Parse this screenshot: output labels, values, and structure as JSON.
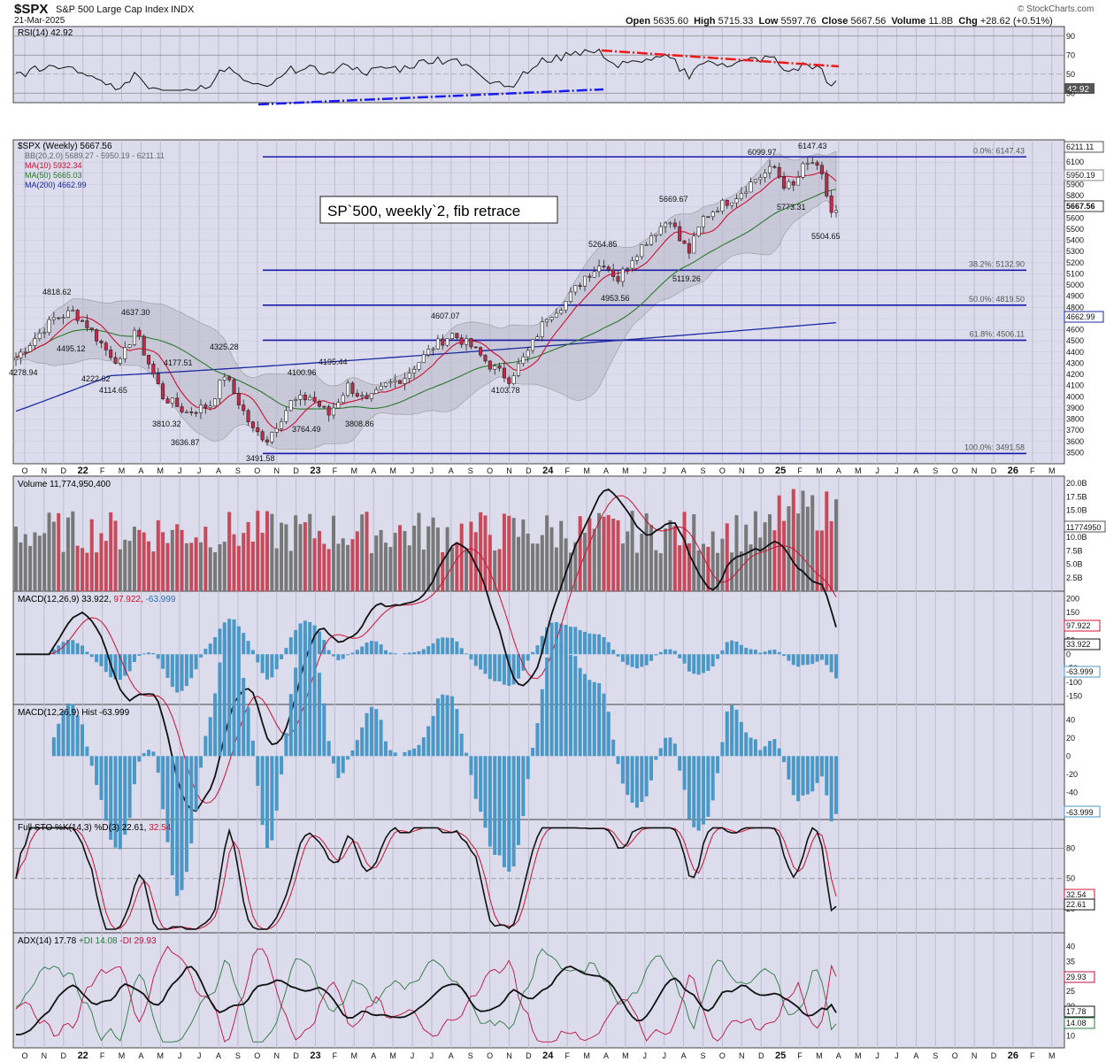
{
  "header": {
    "symbol": "$SPX",
    "name": "S&P 500 Large Cap Index",
    "exchange": "INDX",
    "date": "21-Mar-2025",
    "copyright": "© StockCharts.com",
    "ohlc": {
      "open_label": "Open",
      "open": "5635.60",
      "high_label": "High",
      "high": "5715.33",
      "low_label": "Low",
      "low": "5597.76",
      "close_label": "Close",
      "close": "5667.56",
      "volume_label": "Volume",
      "volume": "11.8B",
      "chg_label": "Chg",
      "chg": "+28.62 (+0.51%)"
    }
  },
  "colors": {
    "panel_bg": "#dcdcec",
    "up": "#ffffff",
    "down": "#c8284a",
    "vol_up": "#787878",
    "vol_down": "#c84a5a",
    "ma10": "#d01030",
    "ma50": "#2a7a2a",
    "ma200": "#1a2aa0",
    "fib": "#1a1aaa",
    "macd_hist": "#4a98c8",
    "plus_di": "#2a7a40",
    "minus_di": "#c01040"
  },
  "panels": {
    "rsi": {
      "legend": "RSI(14) 42.92",
      "value_label": "42.92",
      "ticks": [
        "90",
        "70",
        "50",
        "30"
      ]
    },
    "price": {
      "legend_title": "$SPX (Weekly) 5667.56",
      "legend_bb": "BB(20,2.0) 5689.27 - 5950.19 - 6211.11",
      "legend_ma10": "MA(10) 5932.34",
      "legend_ma50": "MA(50) 5665.03",
      "legend_ma200": "MA(200) 4662.99",
      "annotation": "SP`500, weekly`2, fib retrace",
      "fib_labels": [
        "0.0%: 6147.43",
        "38.2%: 5132.90",
        "50.0%: 4819.50",
        "61.8%: 4506.11",
        "100.0%: 3491.58"
      ],
      "peak_labels": [
        "4818.62",
        "4495.12",
        "4278.94",
        "4222.62",
        "4114.65",
        "4637.30",
        "4177.51",
        "3810.32",
        "3636.87",
        "4325.28",
        "3491.58",
        "4100.96",
        "4195.44",
        "3764.49",
        "3808.86",
        "4607.07",
        "4103.78",
        "5264.85",
        "4953.56",
        "5669.67",
        "5119.26",
        "6099.97",
        "6147.43",
        "5773.31",
        "5504.65"
      ],
      "axis_labels": [
        "6211.11",
        "5950.19",
        "5667.56",
        "4662.99"
      ],
      "ticks": [
        "6100",
        "6000",
        "5900",
        "5800",
        "5700",
        "5600",
        "5500",
        "5400",
        "5300",
        "5200",
        "5100",
        "5000",
        "4900",
        "4800",
        "4700",
        "4600",
        "4500",
        "4400",
        "4300",
        "4200",
        "4100",
        "4000",
        "3900",
        "3800",
        "3700",
        "3600",
        "3500"
      ]
    },
    "volume": {
      "legend": "Volume 11,774,950,400",
      "value_label": "11774950",
      "ticks": [
        "20.0B",
        "17.5B",
        "15.0B",
        "12.5B",
        "10.0B",
        "7.5B",
        "5.0B",
        "2.5B"
      ]
    },
    "macd": {
      "legend_a": "MACD(12,26,9) 33.922,",
      "legend_b": "97.922,",
      "legend_c": "-63.999",
      "labels": [
        "97.922",
        "33.922",
        "-63.999"
      ],
      "ticks": [
        "200",
        "150",
        "100",
        "50",
        "0",
        "-50",
        "-100",
        "-150"
      ]
    },
    "hist": {
      "legend": "MACD(12,26,9) Hist -63.999",
      "value_label": "-63.999",
      "ticks": [
        "40",
        "20",
        "0",
        "-20",
        "-40",
        "-60"
      ]
    },
    "sto": {
      "legend_a": "Full STO %K(14,3) %D(3) 22.61,",
      "legend_b": "32.54",
      "labels": [
        "32.54",
        "22.61"
      ],
      "ticks": [
        "80",
        "50",
        "20"
      ]
    },
    "adx": {
      "legend_a": "ADX(14) 17.78",
      "legend_b": "+DI 14.08",
      "legend_c": "-DI 29.93",
      "labels": [
        "29.93",
        "17.78",
        "14.08"
      ],
      "ticks": [
        "40",
        "35",
        "30",
        "25",
        "20",
        "15",
        "10"
      ]
    }
  },
  "time_axis": [
    "O",
    "N",
    "D",
    "22",
    "F",
    "M",
    "A",
    "M",
    "J",
    "J",
    "A",
    "S",
    "O",
    "N",
    "D",
    "23",
    "F",
    "M",
    "A",
    "M",
    "J",
    "J",
    "A",
    "S",
    "O",
    "N",
    "D",
    "24",
    "F",
    "M",
    "A",
    "M",
    "J",
    "J",
    "A",
    "S",
    "O",
    "N",
    "D",
    "25",
    "F",
    "M",
    "A",
    "M",
    "J",
    "J",
    "A",
    "S",
    "O",
    "N",
    "D",
    "26",
    "F",
    "M"
  ],
  "chart_data": {
    "type": "candlestick",
    "title": "$SPX (Weekly) 5667.56",
    "ylim": [
      3400,
      6300
    ],
    "x": "weekly, Oct 2021 – Mar 2025",
    "anchor_points": [
      {
        "t": 0,
        "v": 4350
      },
      {
        "t": 8,
        "v": 4700
      },
      {
        "t": 12,
        "v": 4760
      },
      {
        "t": 15,
        "v": 4640
      },
      {
        "t": 19,
        "v": 4420
      },
      {
        "t": 22,
        "v": 4300
      },
      {
        "t": 25,
        "v": 4600
      },
      {
        "t": 31,
        "v": 4000
      },
      {
        "t": 36,
        "v": 3860
      },
      {
        "t": 41,
        "v": 3930
      },
      {
        "t": 44,
        "v": 4200
      },
      {
        "t": 50,
        "v": 3700
      },
      {
        "t": 53,
        "v": 3620
      },
      {
        "t": 58,
        "v": 3950
      },
      {
        "t": 62,
        "v": 4000
      },
      {
        "t": 66,
        "v": 3840
      },
      {
        "t": 70,
        "v": 4100
      },
      {
        "t": 74,
        "v": 3950
      },
      {
        "t": 78,
        "v": 4100
      },
      {
        "t": 82,
        "v": 4180
      },
      {
        "t": 88,
        "v": 4450
      },
      {
        "t": 92,
        "v": 4560
      },
      {
        "t": 96,
        "v": 4450
      },
      {
        "t": 100,
        "v": 4280
      },
      {
        "t": 104,
        "v": 4160
      },
      {
        "t": 108,
        "v": 4400
      },
      {
        "t": 112,
        "v": 4720
      },
      {
        "t": 116,
        "v": 4850
      },
      {
        "t": 120,
        "v": 5080
      },
      {
        "t": 124,
        "v": 5200
      },
      {
        "t": 127,
        "v": 5050
      },
      {
        "t": 130,
        "v": 5250
      },
      {
        "t": 134,
        "v": 5450
      },
      {
        "t": 138,
        "v": 5600
      },
      {
        "t": 140,
        "v": 5400
      },
      {
        "t": 142,
        "v": 5300
      },
      {
        "t": 145,
        "v": 5600
      },
      {
        "t": 148,
        "v": 5700
      },
      {
        "t": 152,
        "v": 5800
      },
      {
        "t": 156,
        "v": 5950
      },
      {
        "t": 160,
        "v": 6050
      },
      {
        "t": 162,
        "v": 5900
      },
      {
        "t": 164,
        "v": 5880
      },
      {
        "t": 166,
        "v": 6050
      },
      {
        "t": 168,
        "v": 6100
      },
      {
        "t": 170,
        "v": 5960
      },
      {
        "t": 172,
        "v": 5650
      },
      {
        "t": 173,
        "v": 5668
      }
    ],
    "fib_levels": [
      {
        "label": "0.0%",
        "value": 6147.43
      },
      {
        "label": "38.2%",
        "value": 5132.9
      },
      {
        "label": "50.0%",
        "value": 4819.5
      },
      {
        "label": "61.8%",
        "value": 4506.11
      },
      {
        "label": "100.0%",
        "value": 3491.58
      }
    ],
    "last": {
      "open": 5635.6,
      "high": 5715.33,
      "low": 5597.76,
      "close": 5667.56,
      "volume": 11774950400
    },
    "indicators": {
      "rsi": 42.92,
      "bb": [
        5689.27,
        5950.19,
        6211.11
      ],
      "ma10": 5932.34,
      "ma50": 5665.03,
      "ma200": 4662.99,
      "macd": 33.922,
      "signal": 97.922,
      "hist": -63.999,
      "stoK": 22.61,
      "stoD": 32.54,
      "adx": 17.78,
      "plus_di": 14.08,
      "minus_di": 29.93
    }
  }
}
